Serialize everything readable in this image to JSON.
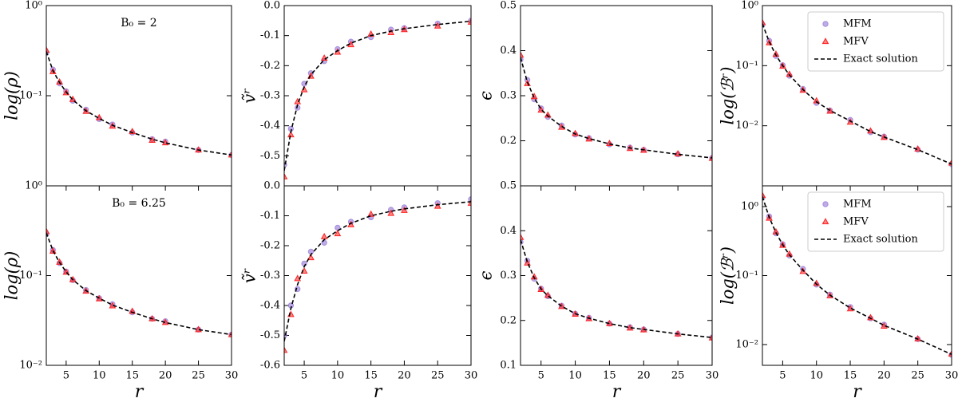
{
  "chart_data": [
    {
      "type": "scatter",
      "annotation": "B₀ = 2",
      "ylabel": "log(ρ)",
      "ylog": true,
      "xlim": [
        2,
        30
      ],
      "ylim": [
        0.01,
        1
      ],
      "yticks": [
        {
          "value": 1,
          "label": "10⁰"
        },
        {
          "value": 0.1,
          "label": "10⁻¹"
        }
      ],
      "x": [
        2,
        3,
        4,
        5,
        6,
        8,
        10,
        12,
        15,
        18,
        20,
        25,
        30
      ],
      "series": [
        {
          "color": "#9b7fd8",
          "marker": "circle",
          "values": [
            0.3,
            0.195,
            0.137,
            0.112,
            0.088,
            0.07,
            0.055,
            0.048,
            0.039,
            0.033,
            0.031,
            0.025,
            0.022
          ]
        },
        {
          "color": "#ff2020",
          "marker": "triangle",
          "values": [
            0.32,
            0.185,
            0.142,
            0.108,
            0.091,
            0.067,
            0.057,
            0.046,
            0.04,
            0.032,
            0.03,
            0.025,
            0.022
          ]
        },
        {
          "color": "#000000",
          "linestyle": "dashed",
          "values": [
            0.31,
            0.19,
            0.14,
            0.11,
            0.09,
            0.068,
            0.056,
            0.047,
            0.039,
            0.033,
            0.03,
            0.025,
            0.022
          ]
        }
      ]
    },
    {
      "type": "scatter",
      "ylabel": "ṽʳ",
      "xlim": [
        2,
        30
      ],
      "ylim": [
        -0.6,
        0
      ],
      "yticks": [
        {
          "value": 0,
          "label": "0.0"
        },
        -0.1,
        -0.2,
        -0.3,
        -0.4,
        -0.5
      ],
      "x": [
        2,
        3,
        4,
        5,
        6,
        8,
        10,
        12,
        15,
        18,
        20,
        25,
        30
      ],
      "series": [
        {
          "color": "#9b7fd8",
          "marker": "circle",
          "values": [
            -0.53,
            -0.41,
            -0.34,
            -0.26,
            -0.225,
            -0.185,
            -0.145,
            -0.12,
            -0.105,
            -0.08,
            -0.075,
            -0.06,
            -0.05
          ]
        },
        {
          "color": "#ff2020",
          "marker": "triangle",
          "values": [
            -0.57,
            -0.43,
            -0.32,
            -0.28,
            -0.235,
            -0.175,
            -0.155,
            -0.13,
            -0.095,
            -0.09,
            -0.08,
            -0.068,
            -0.055
          ]
        },
        {
          "color": "#000000",
          "linestyle": "dashed",
          "values": [
            -0.55,
            -0.42,
            -0.33,
            -0.27,
            -0.23,
            -0.18,
            -0.15,
            -0.125,
            -0.1,
            -0.085,
            -0.077,
            -0.063,
            -0.052
          ]
        }
      ]
    },
    {
      "type": "scatter",
      "ylabel": "ϵ",
      "xlim": [
        2,
        30
      ],
      "ylim": [
        0.1,
        0.5
      ],
      "yticks": [
        0.5,
        0.4,
        0.3,
        0.2
      ],
      "x": [
        2,
        3,
        4,
        5,
        6,
        8,
        10,
        12,
        15,
        18,
        20,
        25,
        30
      ],
      "series": [
        {
          "color": "#9b7fd8",
          "marker": "circle",
          "values": [
            0.38,
            0.335,
            0.292,
            0.272,
            0.253,
            0.234,
            0.214,
            0.206,
            0.192,
            0.185,
            0.18,
            0.17,
            0.162
          ]
        },
        {
          "color": "#ff2020",
          "marker": "triangle",
          "values": [
            0.39,
            0.327,
            0.298,
            0.268,
            0.257,
            0.23,
            0.216,
            0.204,
            0.194,
            0.183,
            0.179,
            0.171,
            0.161
          ]
        },
        {
          "color": "#000000",
          "linestyle": "dashed",
          "values": [
            0.385,
            0.33,
            0.295,
            0.27,
            0.255,
            0.232,
            0.215,
            0.205,
            0.193,
            0.184,
            0.18,
            0.17,
            0.162
          ]
        }
      ]
    },
    {
      "type": "scatter",
      "ylabel": "log(ℬʳ)",
      "ylog": true,
      "xlim": [
        2,
        30
      ],
      "ylim": [
        0.001,
        1
      ],
      "legend": "upper right",
      "yticks": [
        {
          "value": 1,
          "label": "10⁰"
        },
        {
          "value": 0.1,
          "label": "10⁻¹"
        },
        {
          "value": 0.01,
          "label": "10⁻²"
        }
      ],
      "x": [
        2,
        3,
        4,
        5,
        6,
        8,
        10,
        12,
        15,
        18,
        20,
        25,
        30
      ],
      "series": [
        {
          "name": "MFM",
          "color": "#9b7fd8",
          "marker": "circle",
          "values": [
            0.48,
            0.26,
            0.145,
            0.102,
            0.068,
            0.041,
            0.024,
            0.018,
            0.0125,
            0.0078,
            0.0066,
            0.004,
            0.0023
          ]
        },
        {
          "name": "MFV",
          "color": "#ff2020",
          "marker": "triangle",
          "values": [
            0.52,
            0.24,
            0.155,
            0.098,
            0.072,
            0.039,
            0.026,
            0.0175,
            0.0115,
            0.0082,
            0.0064,
            0.0041,
            0.0024
          ]
        },
        {
          "name": "Exact solution",
          "color": "#000000",
          "linestyle": "dashed",
          "values": [
            0.5,
            0.25,
            0.15,
            0.1,
            0.07,
            0.04,
            0.025,
            0.018,
            0.012,
            0.008,
            0.0065,
            0.004,
            0.0023
          ]
        }
      ]
    },
    {
      "type": "scatter",
      "annotation": "B₀ = 6.25",
      "ylabel": "log(ρ)",
      "xlabel": "r",
      "ylog": true,
      "xlim": [
        2,
        30
      ],
      "ylim": [
        0.01,
        1
      ],
      "xticks": [
        5,
        10,
        15,
        20,
        25,
        30
      ],
      "yticks": [
        {
          "value": 1,
          "label": "10⁰"
        },
        {
          "value": 0.1,
          "label": "10⁻¹"
        },
        {
          "value": 0.01,
          "label": "10⁻²"
        }
      ],
      "x": [
        2,
        3,
        4,
        5,
        6,
        8,
        10,
        12,
        15,
        18,
        20,
        25,
        30
      ],
      "series": [
        {
          "color": "#9b7fd8",
          "marker": "circle",
          "values": [
            0.29,
            0.193,
            0.138,
            0.111,
            0.089,
            0.069,
            0.056,
            0.048,
            0.039,
            0.033,
            0.031,
            0.025,
            0.022
          ]
        },
        {
          "color": "#ff2020",
          "marker": "triangle",
          "values": [
            0.31,
            0.187,
            0.141,
            0.109,
            0.09,
            0.067,
            0.055,
            0.046,
            0.04,
            0.033,
            0.03,
            0.025,
            0.022
          ]
        },
        {
          "color": "#000000",
          "linestyle": "dashed",
          "values": [
            0.3,
            0.19,
            0.14,
            0.11,
            0.09,
            0.068,
            0.056,
            0.047,
            0.039,
            0.033,
            0.03,
            0.025,
            0.022
          ]
        }
      ]
    },
    {
      "type": "scatter",
      "ylabel": "ṽʳ",
      "xlabel": "r",
      "xlim": [
        2,
        30
      ],
      "ylim": [
        -0.6,
        0
      ],
      "xticks": [
        5,
        10,
        15,
        20,
        25,
        30
      ],
      "yticks": [
        {
          "value": 0,
          "label": "0.0"
        },
        -0.1,
        -0.2,
        -0.3,
        -0.4,
        -0.5,
        -0.6
      ],
      "x": [
        2,
        3,
        4,
        5,
        6,
        8,
        10,
        12,
        15,
        18,
        20,
        25,
        30
      ],
      "series": [
        {
          "color": "#9b7fd8",
          "marker": "circle",
          "values": [
            -0.5,
            -0.4,
            -0.345,
            -0.26,
            -0.22,
            -0.19,
            -0.14,
            -0.12,
            -0.105,
            -0.08,
            -0.072,
            -0.058,
            -0.045
          ]
        },
        {
          "color": "#ff2020",
          "marker": "triangle",
          "values": [
            -0.55,
            -0.43,
            -0.31,
            -0.285,
            -0.24,
            -0.17,
            -0.16,
            -0.13,
            -0.095,
            -0.092,
            -0.082,
            -0.068,
            -0.058
          ]
        },
        {
          "color": "#000000",
          "linestyle": "dashed",
          "values": [
            -0.52,
            -0.41,
            -0.33,
            -0.27,
            -0.23,
            -0.18,
            -0.15,
            -0.125,
            -0.1,
            -0.085,
            -0.077,
            -0.063,
            -0.053
          ]
        }
      ]
    },
    {
      "type": "scatter",
      "ylabel": "ϵ",
      "xlabel": "r",
      "xlim": [
        2,
        30
      ],
      "ylim": [
        0.1,
        0.5
      ],
      "xticks": [
        5,
        10,
        15,
        20,
        25,
        30
      ],
      "yticks": [
        0.5,
        0.4,
        0.3,
        0.2,
        0.1
      ],
      "x": [
        2,
        3,
        4,
        5,
        6,
        8,
        10,
        12,
        15,
        18,
        20,
        25,
        30
      ],
      "series": [
        {
          "color": "#9b7fd8",
          "marker": "circle",
          "values": [
            0.375,
            0.333,
            0.293,
            0.271,
            0.254,
            0.233,
            0.215,
            0.206,
            0.193,
            0.185,
            0.18,
            0.17,
            0.162
          ]
        },
        {
          "color": "#ff2020",
          "marker": "triangle",
          "values": [
            0.385,
            0.328,
            0.297,
            0.269,
            0.256,
            0.231,
            0.214,
            0.204,
            0.193,
            0.183,
            0.179,
            0.17,
            0.161
          ]
        },
        {
          "color": "#000000",
          "linestyle": "dashed",
          "values": [
            0.38,
            0.33,
            0.295,
            0.27,
            0.255,
            0.232,
            0.215,
            0.205,
            0.193,
            0.184,
            0.18,
            0.17,
            0.162
          ]
        }
      ]
    },
    {
      "type": "scatter",
      "ylabel": "log(ℬʳ)",
      "xlabel": "r",
      "ylog": true,
      "xlim": [
        2,
        30
      ],
      "ylim": [
        0.005,
        2
      ],
      "legend": "upper right",
      "xticks": [
        5,
        10,
        15,
        20,
        25,
        30
      ],
      "yticks": [
        {
          "value": 1,
          "label": "10⁰"
        },
        {
          "value": 0.1,
          "label": "10⁻¹"
        },
        {
          "value": 0.01,
          "label": "10⁻²"
        }
      ],
      "x": [
        2,
        3,
        4,
        5,
        6,
        8,
        10,
        12,
        15,
        18,
        20,
        25,
        30
      ],
      "series": [
        {
          "name": "MFM",
          "color": "#9b7fd8",
          "marker": "circle",
          "values": [
            1.35,
            0.72,
            0.41,
            0.285,
            0.195,
            0.125,
            0.074,
            0.053,
            0.035,
            0.024,
            0.0195,
            0.012,
            0.0071
          ]
        },
        {
          "name": "MFV",
          "color": "#ff2020",
          "marker": "triangle",
          "values": [
            1.45,
            0.68,
            0.43,
            0.275,
            0.205,
            0.115,
            0.077,
            0.051,
            0.033,
            0.0245,
            0.0185,
            0.0121,
            0.0073
          ]
        },
        {
          "name": "Exact solution",
          "color": "#000000",
          "linestyle": "dashed",
          "values": [
            1.4,
            0.7,
            0.42,
            0.28,
            0.2,
            0.12,
            0.075,
            0.052,
            0.034,
            0.024,
            0.019,
            0.012,
            0.0072
          ]
        }
      ]
    }
  ]
}
